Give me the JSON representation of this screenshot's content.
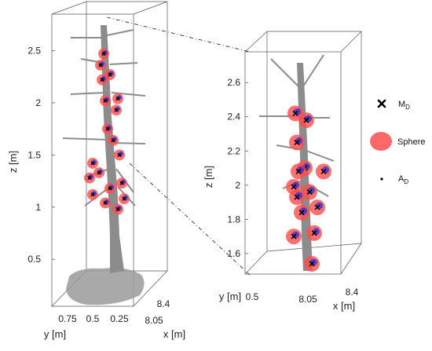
{
  "chart_data": [
    {
      "type": "scatter",
      "title": "",
      "zlabel": "z [m]",
      "ylabel": "y [m]",
      "xlabel": "x [m]",
      "z_ticks": [
        "0.5",
        "1",
        "1.5",
        "2",
        "2.5"
      ],
      "y_ticks": [
        "0.75",
        "0.5",
        "0.25"
      ],
      "x_ticks": [
        "8.05",
        "8.4"
      ],
      "zlim": [
        0.05,
        2.85
      ],
      "points_MD_z": [
        2.47,
        2.36,
        2.27,
        2.22,
        2.04,
        2.02,
        1.93,
        1.75,
        1.64,
        1.5,
        1.42,
        1.33,
        1.28,
        1.23,
        1.18,
        1.12,
        1.08,
        1.04,
        0.98
      ]
    },
    {
      "type": "scatter",
      "title": "",
      "zlabel": "z [m]",
      "ylabel": "y [m]",
      "xlabel": "x [m]",
      "z_ticks": [
        "1.6",
        "1.8",
        "2",
        "2.2",
        "2.4",
        "2.6"
      ],
      "y_ticks": [
        "0.5"
      ],
      "x_ticks": [
        "8.05",
        "8.4"
      ],
      "zlim": [
        1.48,
        2.78
      ],
      "points_MD_z": [
        2.42,
        2.38,
        2.25,
        2.1,
        2.08,
        2.08,
        1.99,
        1.96,
        1.93,
        1.87,
        1.84,
        1.72,
        1.7,
        1.54
      ]
    }
  ],
  "legend": {
    "items": [
      {
        "symbol": "x-mark",
        "label_main": "M",
        "label_sub": "D"
      },
      {
        "symbol": "sphere",
        "label": "Sphere"
      },
      {
        "symbol": "dot",
        "label_main": "A",
        "label_sub": "D"
      }
    ]
  },
  "colors": {
    "point_cloud": "#8c8c8c",
    "sphere": "#ff4d4d",
    "sphere_core": "#2a2ad8",
    "marker": "#000000"
  }
}
